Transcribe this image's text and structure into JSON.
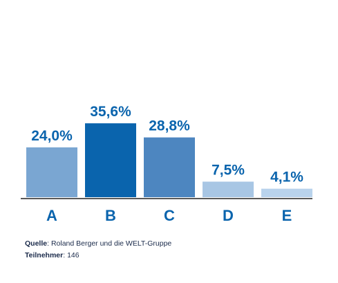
{
  "chart_data": {
    "type": "bar",
    "categories": [
      "A",
      "B",
      "C",
      "D",
      "E"
    ],
    "values": [
      24.0,
      35.6,
      28.8,
      7.5,
      4.1
    ],
    "value_labels": [
      "24,0%",
      "35,6%",
      "28,8%",
      "7,5%",
      "4,1%"
    ],
    "bar_colors": [
      "#7aa6d2",
      "#0a64ad",
      "#4d86c0",
      "#a8c6e4",
      "#b9d3ec"
    ],
    "label_color": "#0a64ad",
    "title": "",
    "xlabel": "",
    "ylabel": "",
    "ylim": [
      0,
      40
    ],
    "grid": false,
    "legend": "none"
  },
  "footnotes": {
    "source_key": "Quelle",
    "source_text": ": Roland Berger und die WELT-Gruppe",
    "participants_key": "Teilnehmer",
    "participants_text": ": 146"
  }
}
